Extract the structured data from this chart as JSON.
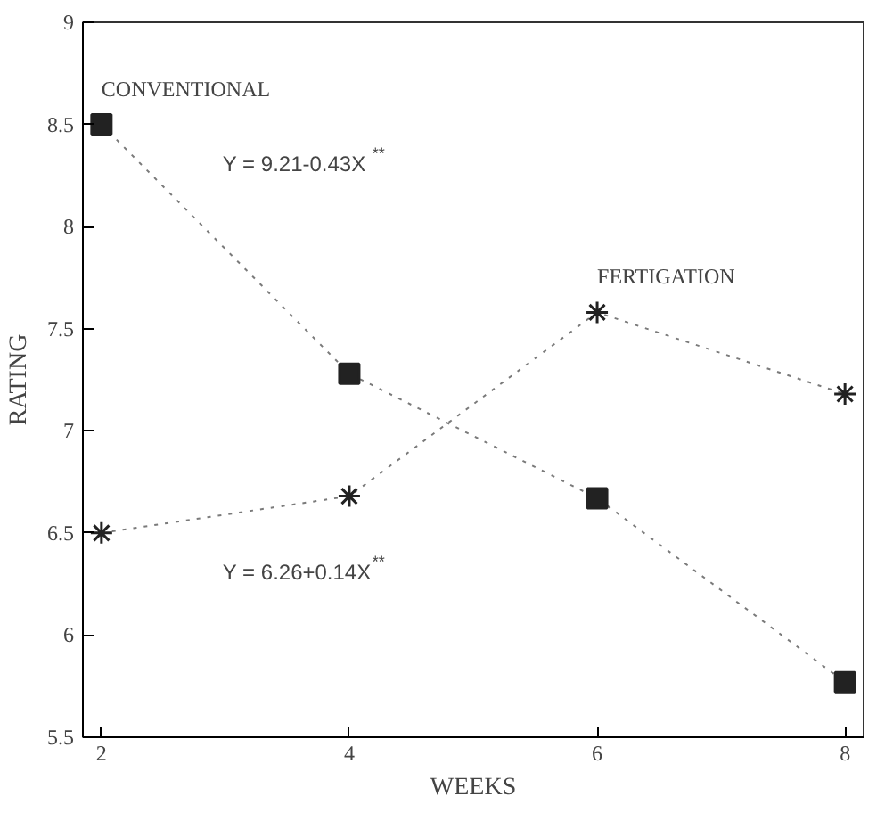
{
  "chart_data": {
    "type": "line",
    "xlabel": "WEEKS",
    "ylabel": "RATING",
    "x": [
      2,
      4,
      6,
      8
    ],
    "series": [
      {
        "name": "CONVENTIONAL",
        "color": "#222222",
        "marker": "square",
        "line_style": "dotted",
        "values": [
          8.5,
          7.28,
          6.67,
          5.77
        ]
      },
      {
        "name": "FERTIGATION",
        "color": "#222222",
        "marker": "cross",
        "line_style": "dotted",
        "values": [
          6.5,
          6.68,
          7.58,
          7.18
        ]
      }
    ],
    "annotations": [
      "Y = 9.21-0.43X$^{**}$",
      "Y = 6.26+0.14X$^{**}$"
    ],
    "xlim": [
      1.85,
      8.15
    ],
    "ylim": [
      5.5,
      9
    ],
    "xticks": [
      2,
      4,
      6,
      8
    ],
    "yticks": [
      5.5,
      6,
      6.5,
      7,
      7.5,
      8,
      8.5,
      9
    ],
    "grid": false,
    "legend": false
  }
}
